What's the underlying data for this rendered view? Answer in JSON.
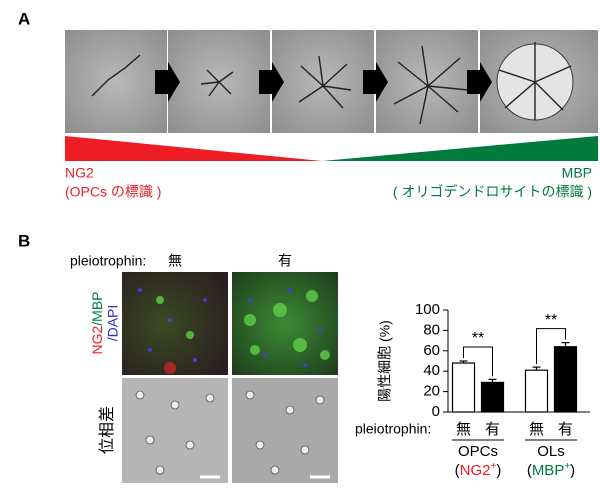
{
  "panel_a": {
    "label": "A",
    "markers": [
      {
        "name": "NG2",
        "description": "(OPCs の標識 )"
      },
      {
        "name": "MBP",
        "description": "( オリゴデンドロサイトの標識 )"
      }
    ]
  },
  "panel_b": {
    "label": "B",
    "condition_label": "pleiotrophin:",
    "conditions": [
      "無",
      "有"
    ],
    "stain_label": {
      "ng2": "NG2",
      "mbp": "/MBP",
      "dapi": "/DAPI"
    },
    "phase_label": "位相差"
  },
  "chart_data": {
    "type": "bar",
    "ylabel": "陽性細胞 (%)",
    "x_label": "pleiotrophin:",
    "categories": [
      "OPCs",
      "OLs"
    ],
    "category_markers": [
      {
        "open": "(",
        "text": "NG2",
        "sup": "+",
        "close": ")",
        "color": "#ee1c25"
      },
      {
        "open": "(",
        "text": "MBP",
        "sup": "+",
        "close": ")",
        "color": "#007a3d"
      }
    ],
    "series": [
      {
        "name": "無",
        "color": "#ffffff",
        "values": [
          48,
          41
        ],
        "errors": [
          2,
          3
        ]
      },
      {
        "name": "有",
        "color": "#000000",
        "values": [
          29,
          64
        ],
        "errors": [
          3,
          4
        ]
      }
    ],
    "ylim": [
      0,
      100
    ],
    "yticks": [
      0,
      20,
      40,
      60,
      80,
      100
    ],
    "annotations": [
      {
        "label": "**"
      },
      {
        "label": "**"
      }
    ]
  }
}
